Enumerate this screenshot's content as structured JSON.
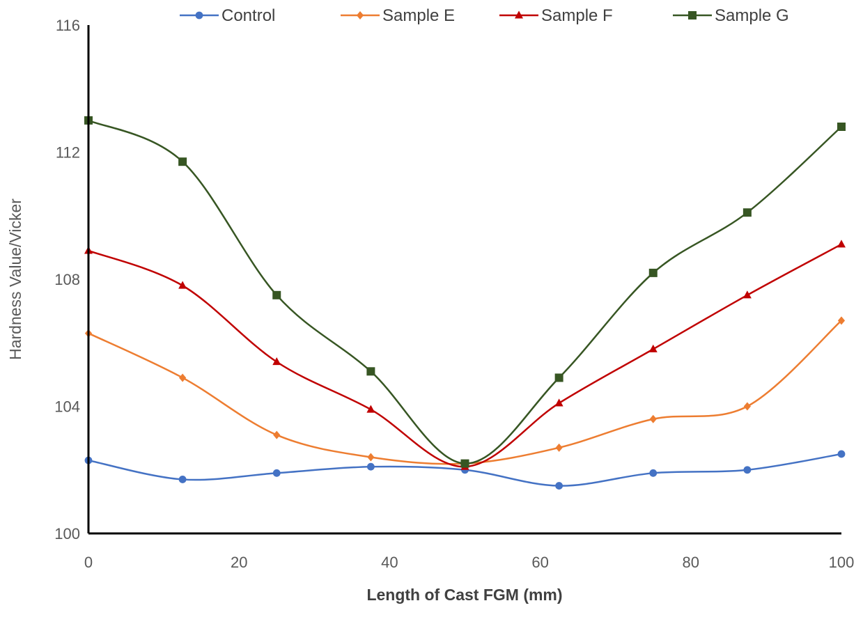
{
  "chart_data": {
    "type": "line",
    "xlabel": "Length of Cast FGM (mm)",
    "ylabel": "Hardness Value/Vicker",
    "xlim": [
      0,
      100
    ],
    "ylim": [
      100,
      116
    ],
    "x_ticks": [
      "0",
      "20",
      "40",
      "60",
      "80",
      "100"
    ],
    "y_ticks": [
      "100",
      "104",
      "108",
      "112",
      "116"
    ],
    "grid": false,
    "legend_position": "top",
    "smooth": true,
    "x": [
      0,
      12.5,
      25,
      37.5,
      50,
      62.5,
      75,
      87.5,
      100
    ],
    "series": [
      {
        "name": "Control",
        "color": "#4472C4",
        "marker": "circle",
        "values": [
          102.3,
          101.7,
          101.9,
          102.1,
          102.0,
          101.5,
          101.9,
          102.0,
          102.5
        ]
      },
      {
        "name": "Sample E",
        "color": "#ED7D31",
        "marker": "diamond",
        "values": [
          106.3,
          104.9,
          103.1,
          102.4,
          102.2,
          102.7,
          103.6,
          104.0,
          106.7
        ]
      },
      {
        "name": "Sample F",
        "color": "#C00000",
        "marker": "triangle",
        "values": [
          108.9,
          107.8,
          105.4,
          103.9,
          102.1,
          104.1,
          105.8,
          107.5,
          109.1
        ]
      },
      {
        "name": "Sample G",
        "color": "#375623",
        "marker": "square",
        "values": [
          113.0,
          111.7,
          107.5,
          105.1,
          102.2,
          104.9,
          108.2,
          110.1,
          112.8
        ]
      }
    ]
  }
}
